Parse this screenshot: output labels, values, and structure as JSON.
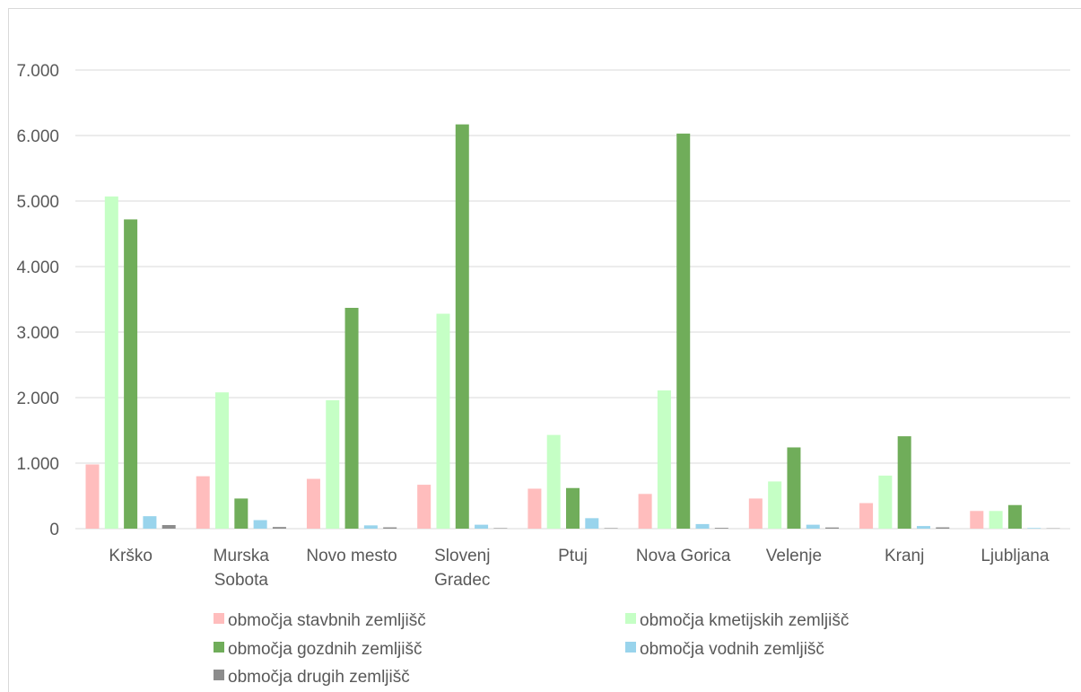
{
  "chart_data": {
    "type": "bar",
    "title": "",
    "xlabel": "",
    "ylabel": "",
    "ylim": [
      0,
      7000
    ],
    "yticks": [
      0,
      1000,
      2000,
      3000,
      4000,
      5000,
      6000,
      7000
    ],
    "ytick_labels": [
      "0",
      "1.000",
      "2.000",
      "3.000",
      "4.000",
      "5.000",
      "6.000",
      "7.000"
    ],
    "grid": true,
    "legend_position": "bottom",
    "categories": [
      [
        "Krško"
      ],
      [
        "Murska",
        "Sobota"
      ],
      [
        "Novo mesto"
      ],
      [
        "Slovenj",
        "Gradec"
      ],
      [
        "Ptuj"
      ],
      [
        "Nova Gorica"
      ],
      [
        "Velenje"
      ],
      [
        "Kranj"
      ],
      [
        "Ljubljana"
      ]
    ],
    "series": [
      {
        "name": "območja stavbnih zemljišč",
        "color": "#ffbdbd",
        "values": [
          980,
          800,
          760,
          670,
          610,
          530,
          460,
          390,
          270
        ]
      },
      {
        "name": "območja kmetijskih zemljišč",
        "color": "#c5ffc5",
        "values": [
          5070,
          2080,
          1960,
          3280,
          1430,
          2110,
          720,
          810,
          270
        ]
      },
      {
        "name": "območja gozdnih zemljišč",
        "color": "#70ad5a",
        "values": [
          4720,
          460,
          3370,
          6170,
          620,
          6030,
          1240,
          1410,
          360
        ]
      },
      {
        "name": "območja vodnih zemljišč",
        "color": "#99d4ec",
        "values": [
          190,
          130,
          50,
          60,
          160,
          70,
          60,
          40,
          10
        ]
      },
      {
        "name": "območja drugih zemljišč",
        "color": "#8c8c8c",
        "values": [
          55,
          25,
          20,
          8,
          8,
          12,
          18,
          20,
          5
        ]
      }
    ]
  }
}
